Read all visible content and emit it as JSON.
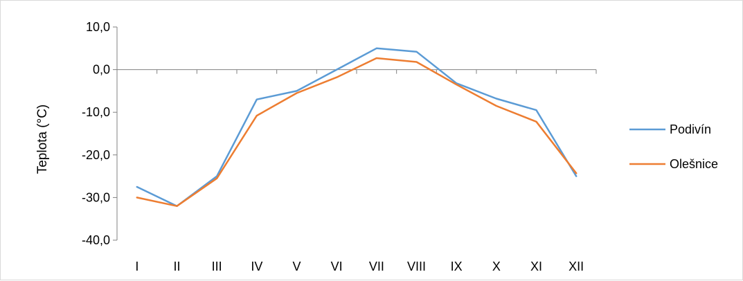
{
  "chart_data": {
    "type": "line",
    "title": "",
    "xlabel": "",
    "ylabel": "Teplota (°C)",
    "ylim": [
      -40,
      10
    ],
    "yticks": [
      "10,0",
      "0,0",
      "-10,0",
      "-20,0",
      "-30,0",
      "-40,0"
    ],
    "ytick_values": [
      10,
      0,
      -10,
      -20,
      -30,
      -40
    ],
    "categories": [
      "I",
      "II",
      "III",
      "IV",
      "V",
      "VI",
      "VII",
      "VIII",
      "IX",
      "X",
      "XI",
      "XII"
    ],
    "grid": false,
    "legend_position": "right",
    "series": [
      {
        "name": "Podivín",
        "color": "#5B9BD5",
        "values": [
          -27.5,
          -32.0,
          -25.0,
          -7.0,
          -5.0,
          0.0,
          5.0,
          4.2,
          -3.2,
          -6.8,
          -9.5,
          -25.0
        ]
      },
      {
        "name": "Olešnice",
        "color": "#ED7D31",
        "values": [
          -30.0,
          -32.0,
          -25.5,
          -10.8,
          -5.5,
          -1.8,
          2.7,
          1.8,
          -3.5,
          -8.5,
          -12.2,
          -24.3
        ]
      }
    ]
  }
}
